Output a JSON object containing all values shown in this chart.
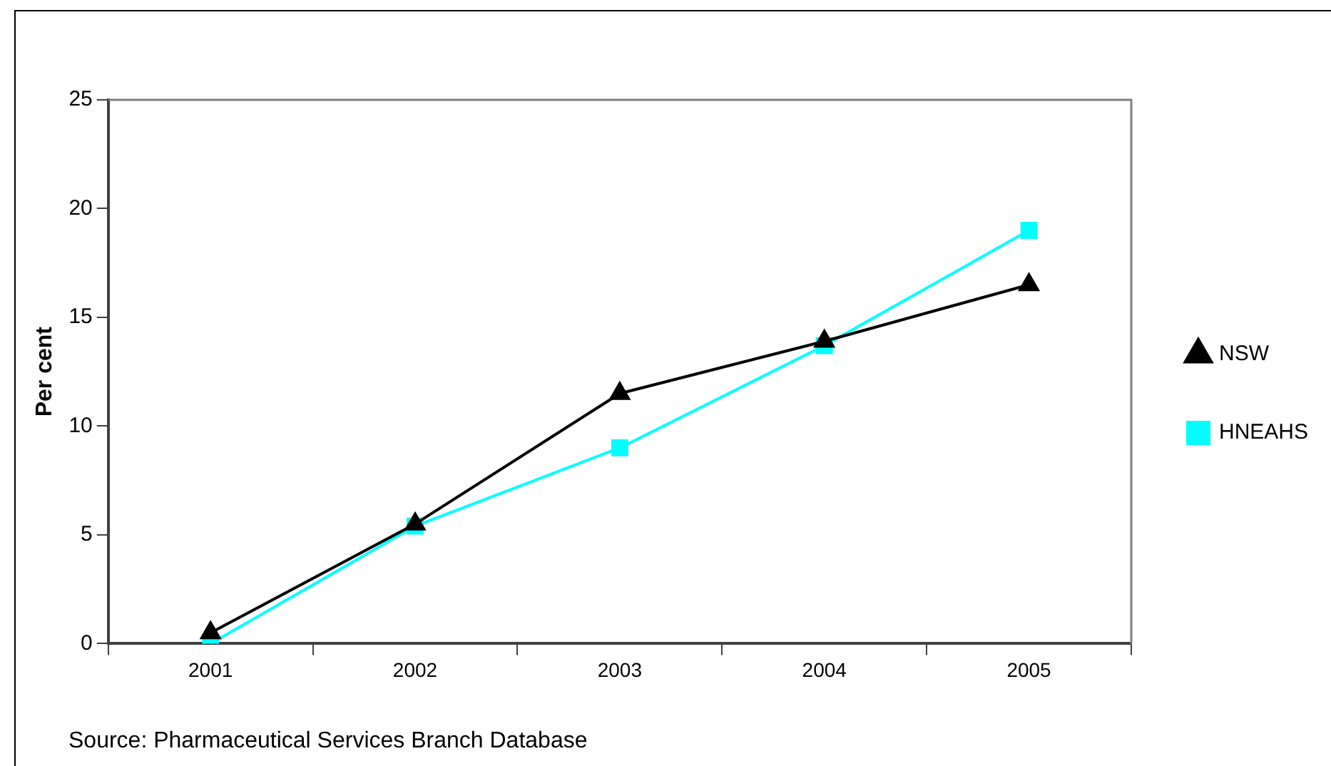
{
  "chart_data": {
    "type": "line",
    "categories": [
      "2001",
      "2002",
      "2003",
      "2004",
      "2005"
    ],
    "ylabel": "Per cent",
    "ylim": [
      0,
      25
    ],
    "yticks": [
      0,
      5,
      10,
      15,
      20,
      25
    ],
    "grid": false,
    "legend": "right",
    "series": [
      {
        "name": "HNEAHS",
        "color": "#00ffff",
        "marker": "square",
        "values": [
          0,
          5.4,
          9,
          13.7,
          19
        ]
      },
      {
        "name": "NSW",
        "color": "#000000",
        "marker": "triangle",
        "values": [
          0.5,
          5.5,
          11.5,
          13.9,
          16.5
        ]
      }
    ],
    "annotations": [
      "Source: Pharmaceutical Services Branch Database"
    ]
  }
}
